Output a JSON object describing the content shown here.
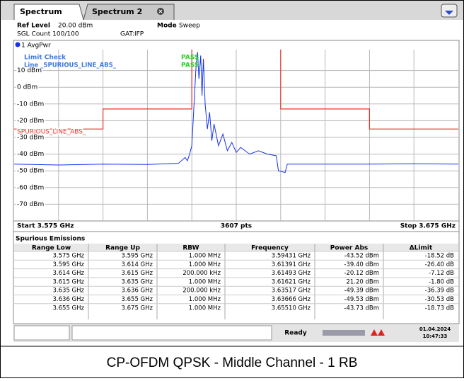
{
  "tabs": [
    "Spectrum",
    "Spectrum 2"
  ],
  "header": {
    "ref_level_label": "Ref Level",
    "ref_level": "20.00 dBm",
    "mode_label": "Mode",
    "mode": "Sweep",
    "count": "SGL Count 100/100",
    "gate": "GAT:IFP"
  },
  "limit_check": {
    "title": "Limit Check",
    "result": "PASS",
    "line": "Line _SPURIOUS_LINE_ABS_",
    "line_result": "PASS"
  },
  "chart_data": {
    "type": "line",
    "xlim": [
      3.575,
      3.675
    ],
    "ylim": [
      -80,
      20
    ],
    "yticks": [
      {
        "value": 10,
        "label": "10 dBm"
      },
      {
        "value": 0,
        "label": "0 dBm"
      },
      {
        "value": -10,
        "label": "-10 dBm"
      },
      {
        "value": -20,
        "label": "-20 dBm"
      },
      {
        "value": -30,
        "label": "-30 dBm"
      },
      {
        "value": -40,
        "label": "-40 dBm"
      },
      {
        "value": -50,
        "label": "-50 dBm"
      },
      {
        "value": -60,
        "label": "-60 dBm"
      },
      {
        "value": -70,
        "label": "-70 dBm"
      }
    ],
    "grid": true,
    "x_start": "Start 3.575 GHz",
    "points": "3607 pts",
    "x_stop": "Stop 3.675 GHz",
    "series": [
      {
        "name": "1 AvgPwr",
        "color": "#1432f0",
        "x": [
          3.575,
          3.585,
          3.595,
          3.605,
          3.612,
          3.6135,
          3.614,
          3.6145,
          3.615,
          3.6155,
          3.616,
          3.6163,
          3.6166,
          3.617,
          3.6173,
          3.6176,
          3.618,
          3.6185,
          3.619,
          3.6195,
          3.62,
          3.621,
          3.622,
          3.623,
          3.624,
          3.625,
          3.626,
          3.628,
          3.63,
          3.632,
          3.634,
          3.6345,
          3.636,
          3.6365,
          3.645,
          3.655,
          3.665,
          3.675
        ],
        "values": [
          -46,
          -46.5,
          -46,
          -46.2,
          -45.5,
          -42,
          -44,
          -40,
          -35,
          -10,
          15,
          21,
          5,
          19,
          -5,
          17,
          -10,
          -25,
          -15,
          -32,
          -22,
          -35,
          -28,
          -38,
          -33,
          -39,
          -36,
          -40,
          -38,
          -40,
          -41,
          -50,
          -51,
          -46,
          -46,
          -46,
          -45.8,
          -46
        ]
      },
      {
        "name": "SPURIOUS_LINE_ABS_",
        "color": "#e8302a",
        "x": [
          3.575,
          3.595,
          3.595,
          3.615,
          3.615,
          3.635,
          3.635,
          3.655,
          3.655,
          3.675
        ],
        "values": [
          -25,
          -25,
          -13,
          -13,
          23,
          23,
          -13,
          -13,
          -25,
          -25
        ]
      }
    ]
  },
  "table": {
    "title": "Spurious Emissions",
    "columns": [
      "Range Low",
      "Range Up",
      "RBW",
      "Frequency",
      "Power Abs",
      "ΔLimit"
    ],
    "rows": [
      [
        "3.575 GHz",
        "3.595 GHz",
        "1.000 MHz",
        "3.59431 GHz",
        "-43.52 dBm",
        "-18.52 dB"
      ],
      [
        "3.595 GHz",
        "3.614 GHz",
        "1.000 MHz",
        "3.61391 GHz",
        "-39.40 dBm",
        "-26.40 dB"
      ],
      [
        "3.614 GHz",
        "3.615 GHz",
        "200.000 kHz",
        "3.61493 GHz",
        "-20.12 dBm",
        "-7.12 dB"
      ],
      [
        "3.615 GHz",
        "3.635 GHz",
        "1.000 MHz",
        "3.61621 GHz",
        "21.20 dBm",
        "-1.80 dB"
      ],
      [
        "3.635 GHz",
        "3.636 GHz",
        "200.000 kHz",
        "3.63517 GHz",
        "-49.39 dBm",
        "-36.39 dB"
      ],
      [
        "3.636 GHz",
        "3.655 GHz",
        "1.000 MHz",
        "3.63666 GHz",
        "-49.53 dBm",
        "-30.53 dB"
      ],
      [
        "3.655 GHz",
        "3.675 GHz",
        "1.000 MHz",
        "3.65510 GHz",
        "-43.73 dBm",
        "-18.73 dB"
      ]
    ]
  },
  "status": {
    "state": "Ready",
    "date": "01.04.2024",
    "time": "10:47:33"
  },
  "caption": "CP-OFDM QPSK - Middle Channel - 1 RB"
}
